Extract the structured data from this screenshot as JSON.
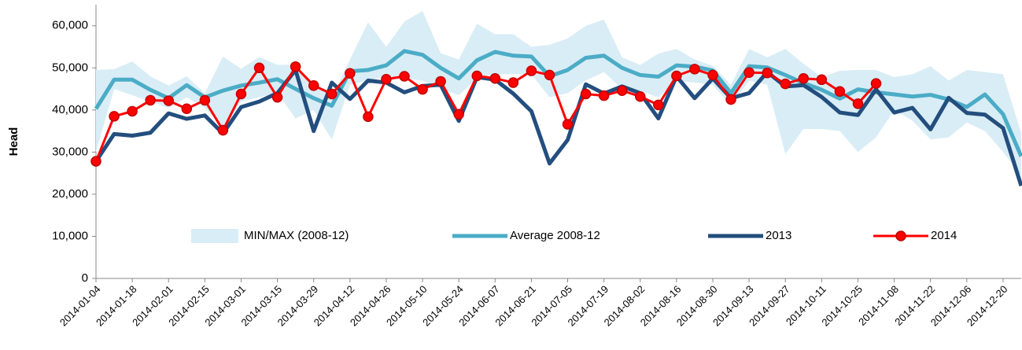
{
  "chart_data": {
    "type": "line",
    "y_label": "Head",
    "categories": [
      "2014-01-04",
      null,
      "2014-01-18",
      null,
      "2014-02-01",
      null,
      "2014-02-15",
      null,
      "2014-03-01",
      null,
      "2014-03-15",
      null,
      "2014-03-29",
      null,
      "2014-04-12",
      null,
      "2014-04-26",
      null,
      "2014-05-10",
      null,
      "2014-05-24",
      null,
      "2014-06-07",
      null,
      "2014-06-21",
      null,
      "2014-07-05",
      null,
      "2014-07-19",
      null,
      "2014-08-02",
      null,
      "2014-08-16",
      null,
      "2014-08-30",
      null,
      "2014-09-13",
      null,
      "2014-09-27",
      null,
      "2014-10-11",
      null,
      "2014-10-25",
      null,
      "2014-11-08",
      null,
      "2014-11-22",
      null,
      "2014-12-06",
      null,
      "2014-12-20",
      null
    ],
    "ylim": [
      0,
      65000
    ],
    "yticks": [
      0,
      {
        "value": 10000,
        "label": "10,000"
      },
      {
        "value": 20000,
        "label": "20,000"
      },
      {
        "value": 30000,
        "label": "30,000"
      },
      {
        "value": 40000,
        "label": "40,000"
      },
      {
        "value": 50000,
        "label": "50,000"
      },
      {
        "value": 60000,
        "label": "60,000"
      }
    ],
    "grid": false,
    "legend": "lower center",
    "series": [
      {
        "name": "MIN/MAX (2008-12)",
        "type": "band",
        "color": "#d9edf6",
        "high": [
          49500,
          49700,
          51500,
          48000,
          45800,
          48000,
          44000,
          52700,
          49800,
          52600,
          50700,
          50800,
          46000,
          43000,
          52000,
          60800,
          55000,
          61000,
          63500,
          53500,
          52000,
          60500,
          58000,
          58000,
          55000,
          55500,
          57000,
          60000,
          61500,
          52500,
          50700,
          53400,
          54500,
          52000,
          50500,
          46000,
          54500,
          52500,
          54500,
          51000,
          47800,
          49300,
          49500,
          49500,
          47800,
          48500,
          50400,
          47000,
          49500,
          49000,
          48500,
          34500
        ],
        "low": [
          30000,
          45000,
          43500,
          42000,
          40500,
          43000,
          40500,
          36000,
          42000,
          43000,
          44000,
          38000,
          40000,
          33000,
          46000,
          47000,
          48000,
          47500,
          47000,
          45000,
          43500,
          47500,
          48500,
          48500,
          48500,
          43000,
          44000,
          47000,
          49000,
          45000,
          44500,
          43000,
          47000,
          46500,
          46000,
          41000,
          47000,
          46000,
          29500,
          35500,
          35500,
          35000,
          30000,
          33500,
          40000,
          37500,
          33000,
          33500,
          37000,
          35000,
          30000,
          24500
        ]
      },
      {
        "name": "Average 2008-12",
        "color": "#4bacc6",
        "values": [
          40300,
          47200,
          47200,
          44800,
          42800,
          45900,
          43000,
          44600,
          45800,
          46500,
          47300,
          45000,
          42800,
          41000,
          49200,
          49500,
          50600,
          54000,
          53100,
          50000,
          47500,
          51800,
          53800,
          52900,
          52700,
          48000,
          49500,
          52400,
          52900,
          50000,
          48300,
          47900,
          50600,
          50300,
          49400,
          44000,
          50400,
          50100,
          48300,
          46400,
          44800,
          42700,
          44900,
          44200,
          43700,
          43200,
          43600,
          42500,
          40700,
          43700,
          39000,
          29000
        ]
      },
      {
        "name": "2013",
        "color": "#234e7e",
        "values": [
          27800,
          34300,
          33900,
          34600,
          39200,
          37900,
          38700,
          34400,
          40700,
          42000,
          44000,
          49500,
          35000,
          46500,
          42600,
          47000,
          46500,
          44200,
          45700,
          46000,
          37400,
          47800,
          47200,
          43900,
          39700,
          27300,
          32900,
          46100,
          43900,
          45600,
          44000,
          38000,
          48000,
          42800,
          47500,
          42800,
          44000,
          49000,
          45600,
          45900,
          43100,
          39400,
          38800,
          44900,
          39400,
          40500,
          35400,
          42900,
          39300,
          38900,
          35700,
          22000
        ]
      },
      {
        "name": "2014",
        "color": "#ff0000",
        "marker_color": "#c00000",
        "values": [
          27800,
          38500,
          39700,
          42300,
          42200,
          40300,
          42300,
          35200,
          43800,
          50000,
          43000,
          50300,
          45800,
          43800,
          48700,
          38400,
          47300,
          48000,
          44900,
          46800,
          39000,
          48100,
          47500,
          46500,
          49300,
          48300,
          36600,
          43800,
          43400,
          44600,
          43200,
          41200,
          48100,
          49700,
          48300,
          42500,
          48900,
          48800,
          46200,
          47500,
          47200,
          44400,
          41500,
          46300,
          null,
          null,
          null,
          null,
          null,
          null,
          null,
          null
        ]
      }
    ]
  }
}
